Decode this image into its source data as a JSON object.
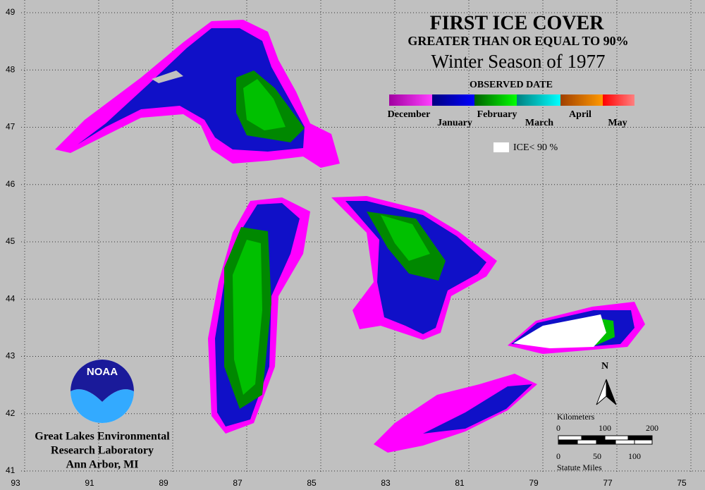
{
  "header": {
    "title": "FIRST ICE COVER",
    "subtitle": "GREATER THAN OR EQUAL TO 90%",
    "season": "Winter Season of 1977"
  },
  "legend": {
    "title": "OBSERVED DATE",
    "labels": [
      "December",
      "January",
      "February",
      "March",
      "April",
      "May"
    ],
    "ice_label": "ICE< 90 %"
  },
  "grid": {
    "latitudes": [
      49,
      48,
      47,
      46,
      45,
      44,
      43,
      42,
      41
    ],
    "longitudes": [
      93,
      91,
      89,
      87,
      85,
      83,
      81,
      79,
      77,
      75
    ]
  },
  "scale": {
    "kilometers_label": "Kilometers",
    "km_ticks": [
      0,
      100,
      200
    ],
    "miles_ticks": [
      0,
      50,
      100
    ],
    "miles_label": "Statute Miles"
  },
  "north": "N",
  "logo": "NOAA",
  "credit": [
    "Great Lakes Environmental",
    "Research Laboratory",
    "Ann Arbor, MI"
  ]
}
